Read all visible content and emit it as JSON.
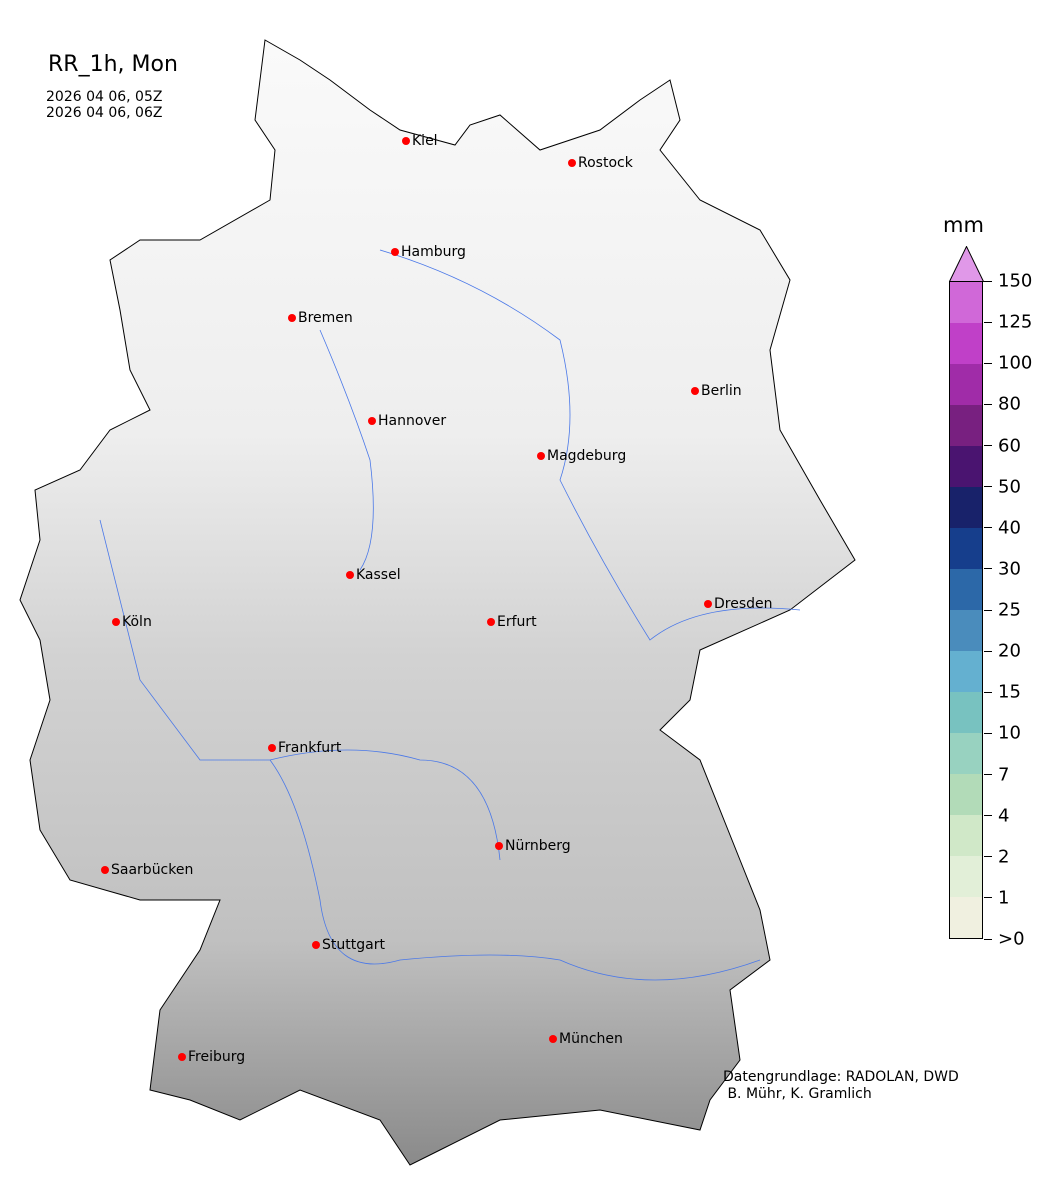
{
  "title": "RR_1h, Mon",
  "time_start": "2026 04 06, 05Z",
  "time_end": "2026 04 06, 06Z",
  "colorbar": {
    "unit": "mm",
    "ticks": [
      ">0",
      "1",
      "2",
      "4",
      "7",
      "10",
      "15",
      "20",
      "25",
      "30",
      "40",
      "50",
      "60",
      "80",
      "100",
      "125",
      "150"
    ],
    "colors": [
      "#f0f0e0",
      "#e2efd8",
      "#d0e8c8",
      "#b2dbb8",
      "#98d2c0",
      "#78c2c0",
      "#64b0d0",
      "#4a8cbc",
      "#2c68a8",
      "#163e8c",
      "#18226a",
      "#4a1470",
      "#782080",
      "#a02ca8",
      "#c040c8",
      "#d068d8"
    ],
    "extend_color": "#e098e8"
  },
  "cities": [
    "Kiel",
    "Rostock",
    "Hamburg",
    "Bremen",
    "Berlin",
    "Hannover",
    "Magdeburg",
    "Kassel",
    "Köln",
    "Erfurt",
    "Dresden",
    "Frankfurt",
    "Nürnberg",
    "Saarbücken",
    "Stuttgart",
    "München",
    "Freiburg"
  ],
  "credit": "Datengrundlage: RADOLAN, DWD\n B. Mühr, K. Gramlich"
}
